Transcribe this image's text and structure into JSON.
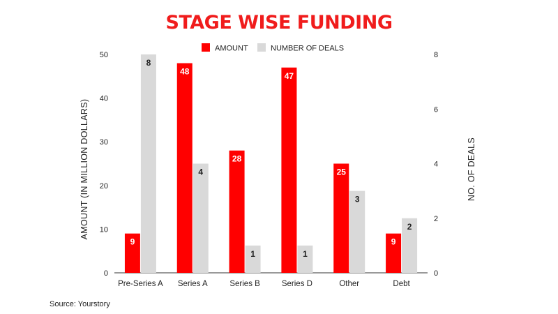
{
  "chart_data": {
    "type": "bar",
    "title": "STAGE WISE FUNDING",
    "categories": [
      "Pre-Series A",
      "Series A",
      "Series B",
      "Series D",
      "Other",
      "Debt"
    ],
    "series": [
      {
        "name": "AMOUNT",
        "axis": "left",
        "color": "#ff0000",
        "values": [
          9,
          48,
          28,
          47,
          25,
          9
        ]
      },
      {
        "name": "NUMBER OF DEALS",
        "axis": "right",
        "color": "#d9d9d9",
        "values": [
          8,
          4,
          1,
          1,
          3,
          2
        ]
      }
    ],
    "ylabel": "AMOUNT (IN MILLION DOLLARS)",
    "y2label": "NO. OF DEALS",
    "ylim": [
      0,
      50
    ],
    "y2lim": [
      0,
      8
    ],
    "yticks": [
      0,
      10,
      20,
      30,
      40,
      50
    ],
    "y2ticks": [
      0,
      2,
      4,
      6,
      8
    ],
    "legend_position": "top-center",
    "grid": false
  },
  "source": "Source: Yourstory"
}
